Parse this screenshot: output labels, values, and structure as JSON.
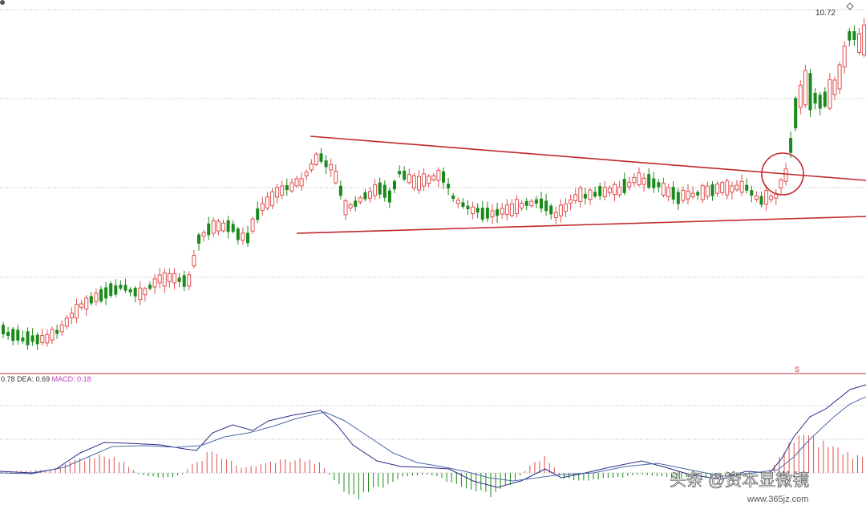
{
  "chart_data": {
    "type": "candlestick",
    "price_panel": {
      "price_label": "10.72",
      "marker_label": "S",
      "colors": {
        "up": "#e0504f",
        "down": "#1a8a1a",
        "grid": "#9a9a9a",
        "trendline": "#c0282c",
        "separator": "#c0282c"
      }
    },
    "macd_panel": {
      "legend_dif": "0.78",
      "legend_dea_label": "DEA:",
      "legend_dea": "0.69",
      "legend_macd_label": "MACD:",
      "legend_macd": "0.18",
      "colors": {
        "dif": "#2a2a8a",
        "dea": "#4a6aa8",
        "hist_pos": "#e0504f",
        "hist_neg": "#1a8a1a",
        "legend_macd": "#c040c0"
      }
    }
  },
  "watermark": {
    "text": "头条 @资本显微镜",
    "url": "www.365jz.com"
  }
}
